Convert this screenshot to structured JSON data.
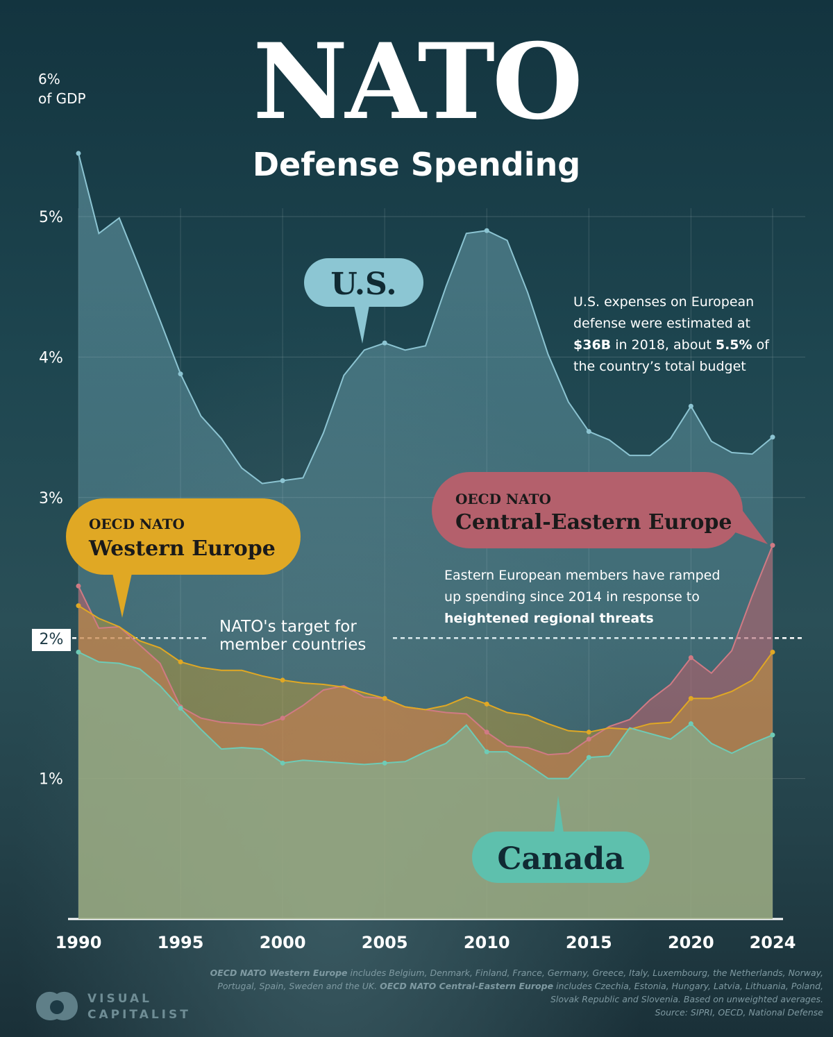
{
  "title": "NATO",
  "subtitle": "Defense Spending",
  "unit_label": [
    "6%",
    "of GDP"
  ],
  "target_label": [
    "NATO's target for",
    "member countries"
  ],
  "target_value_label": "2%",
  "labels": {
    "us": "U.S.",
    "canada": "Canada",
    "we_line1": "OECD NATO",
    "we_line2": "Western Europe",
    "cee_line1": "OECD NATO",
    "cee_line2": "Central-Eastern Europe"
  },
  "notes": {
    "us": {
      "t1": "U.S. expenses on European",
      "t2": "defense were estimated at",
      "b1": "$36B",
      "t3": " in 2018, about ",
      "b2": "5.5%",
      "t4": " of",
      "t5": "the country’s total budget"
    },
    "ee": {
      "t1": "Eastern European members have ramped",
      "t2": "up spending since 2014 in response to",
      "b1": "heightened regional threats"
    }
  },
  "source": {
    "b1": "OECD NATO Western Europe",
    "t1": " includes Belgium, Denmark, Finland, France, Germany, Greece, Italy, Luxembourg, the Netherlands, Norway, Portugal, Spain, Sweden and the UK. ",
    "b2": "OECD NATO Central-Eastern Europe",
    "t2": " includes Czechia, Estonia, Hungary, Latvia, Lithuania, Poland, Slovak Republic and Slovenia. Based on unweighted averages.",
    "t3": "Source: SIPRI, OECD, National Defense"
  },
  "logo": [
    "VISUAL",
    "CAPITALIST"
  ],
  "colors": {
    "us": "#8cc4d2",
    "western": "#e0a824",
    "cee": "#c0606c",
    "canada": "#6ecbb6",
    "bg": "#1d3a45"
  },
  "chart_data": {
    "type": "area",
    "title": "NATO Defense Spending",
    "ylabel": "% of GDP",
    "xlabel": "",
    "ylim": [
      0,
      6
    ],
    "xlim": [
      1990,
      2024
    ],
    "x_ticks": [
      1990,
      1995,
      2000,
      2005,
      2010,
      2015,
      2020,
      2024
    ],
    "y_ticks": [
      "1%",
      "3%",
      "4%",
      "5%"
    ],
    "nato_target": 2,
    "series": [
      {
        "name": "U.S.",
        "x": [
          1990,
          1991,
          1992,
          1993,
          1994,
          1995,
          1996,
          1997,
          1998,
          1999,
          2000,
          2001,
          2002,
          2003,
          2004,
          2005,
          2006,
          2007,
          2008,
          2009,
          2010,
          2011,
          2012,
          2013,
          2014,
          2015,
          2016,
          2017,
          2018,
          2019,
          2020,
          2021,
          2022,
          2023,
          2024
        ],
        "values": [
          5.45,
          4.88,
          4.99,
          4.63,
          4.26,
          3.88,
          3.58,
          3.42,
          3.21,
          3.1,
          3.12,
          3.14,
          3.46,
          3.87,
          4.05,
          4.1,
          4.05,
          4.08,
          4.5,
          4.88,
          4.9,
          4.83,
          4.46,
          4.02,
          3.68,
          3.47,
          3.41,
          3.3,
          3.3,
          3.42,
          3.65,
          3.4,
          3.32,
          3.31,
          3.43
        ]
      },
      {
        "name": "OECD NATO Western Europe",
        "x": [
          1990,
          1991,
          1992,
          1993,
          1994,
          1995,
          1996,
          1997,
          1998,
          1999,
          2000,
          2001,
          2002,
          2003,
          2004,
          2005,
          2006,
          2007,
          2008,
          2009,
          2010,
          2011,
          2012,
          2013,
          2014,
          2015,
          2016,
          2017,
          2018,
          2019,
          2020,
          2021,
          2022,
          2023,
          2024
        ],
        "values": [
          2.23,
          2.14,
          2.08,
          1.98,
          1.93,
          1.83,
          1.79,
          1.77,
          1.77,
          1.73,
          1.7,
          1.68,
          1.67,
          1.65,
          1.61,
          1.57,
          1.51,
          1.49,
          1.52,
          1.58,
          1.53,
          1.47,
          1.45,
          1.39,
          1.34,
          1.33,
          1.36,
          1.35,
          1.39,
          1.4,
          1.57,
          1.57,
          1.62,
          1.7,
          1.9
        ]
      },
      {
        "name": "OECD NATO Central-Eastern Europe",
        "x": [
          1990,
          1991,
          1992,
          1993,
          1994,
          1995,
          1996,
          1997,
          1998,
          1999,
          2000,
          2001,
          2002,
          2003,
          2004,
          2005,
          2006,
          2007,
          2008,
          2009,
          2010,
          2011,
          2012,
          2013,
          2014,
          2015,
          2016,
          2017,
          2018,
          2019,
          2020,
          2021,
          2022,
          2023,
          2024
        ],
        "values": [
          2.37,
          2.07,
          2.08,
          1.95,
          1.82,
          1.51,
          1.43,
          1.4,
          1.39,
          1.38,
          1.43,
          1.52,
          1.63,
          1.66,
          1.58,
          1.57,
          1.51,
          1.49,
          1.47,
          1.46,
          1.33,
          1.23,
          1.22,
          1.17,
          1.18,
          1.28,
          1.37,
          1.42,
          1.56,
          1.67,
          1.86,
          1.75,
          1.91,
          2.3,
          2.66
        ]
      },
      {
        "name": "Canada",
        "x": [
          1990,
          1991,
          1992,
          1993,
          1994,
          1995,
          1996,
          1997,
          1998,
          1999,
          2000,
          2001,
          2002,
          2003,
          2004,
          2005,
          2006,
          2007,
          2008,
          2009,
          2010,
          2011,
          2012,
          2013,
          2014,
          2015,
          2016,
          2017,
          2018,
          2019,
          2020,
          2021,
          2022,
          2023,
          2024
        ],
        "values": [
          1.9,
          1.83,
          1.82,
          1.78,
          1.66,
          1.5,
          1.35,
          1.21,
          1.22,
          1.21,
          1.11,
          1.13,
          1.12,
          1.11,
          1.1,
          1.11,
          1.12,
          1.19,
          1.25,
          1.38,
          1.19,
          1.19,
          1.1,
          1.0,
          1.0,
          1.15,
          1.16,
          1.36,
          1.32,
          1.28,
          1.39,
          1.25,
          1.18,
          1.25,
          1.31
        ]
      }
    ]
  }
}
